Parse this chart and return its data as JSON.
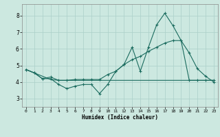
{
  "title": "",
  "xlabel": "Humidex (Indice chaleur)",
  "xlim": [
    -0.5,
    23.5
  ],
  "ylim": [
    2.5,
    8.7
  ],
  "xticks": [
    0,
    1,
    2,
    3,
    4,
    5,
    6,
    7,
    8,
    9,
    10,
    11,
    12,
    13,
    14,
    15,
    16,
    17,
    18,
    19,
    20,
    21,
    22,
    23
  ],
  "yticks": [
    3,
    4,
    5,
    6,
    7,
    8
  ],
  "background_color": "#cce8e0",
  "grid_color": "#aacfc8",
  "line_color": "#1a6b5e",
  "line1_x": [
    0,
    1,
    2,
    3,
    4,
    5,
    6,
    7,
    8,
    9,
    10,
    11,
    12,
    13,
    14,
    15,
    16,
    17,
    18,
    19,
    20,
    21,
    22,
    23
  ],
  "line1_y": [
    4.75,
    4.55,
    4.2,
    4.2,
    3.85,
    3.6,
    3.75,
    3.85,
    3.85,
    3.3,
    3.85,
    4.65,
    5.05,
    6.1,
    4.65,
    6.1,
    7.45,
    8.15,
    7.4,
    6.5,
    5.75,
    4.8,
    4.35,
    4.0
  ],
  "line2_x": [
    0,
    1,
    2,
    3,
    4,
    5,
    6,
    7,
    8,
    9,
    10,
    11,
    12,
    13,
    14,
    15,
    16,
    17,
    18,
    19,
    20,
    21,
    22,
    23
  ],
  "line2_y": [
    4.75,
    4.55,
    4.2,
    4.3,
    4.1,
    4.1,
    4.15,
    4.15,
    4.15,
    4.15,
    4.45,
    4.65,
    5.05,
    5.35,
    5.55,
    5.85,
    6.1,
    6.35,
    6.5,
    6.5,
    4.1,
    4.1,
    4.1,
    4.1
  ],
  "line3_x": [
    0,
    3,
    4,
    23
  ],
  "line3_y": [
    4.75,
    4.15,
    4.1,
    4.1
  ],
  "figsize": [
    3.2,
    2.0
  ],
  "dpi": 100
}
